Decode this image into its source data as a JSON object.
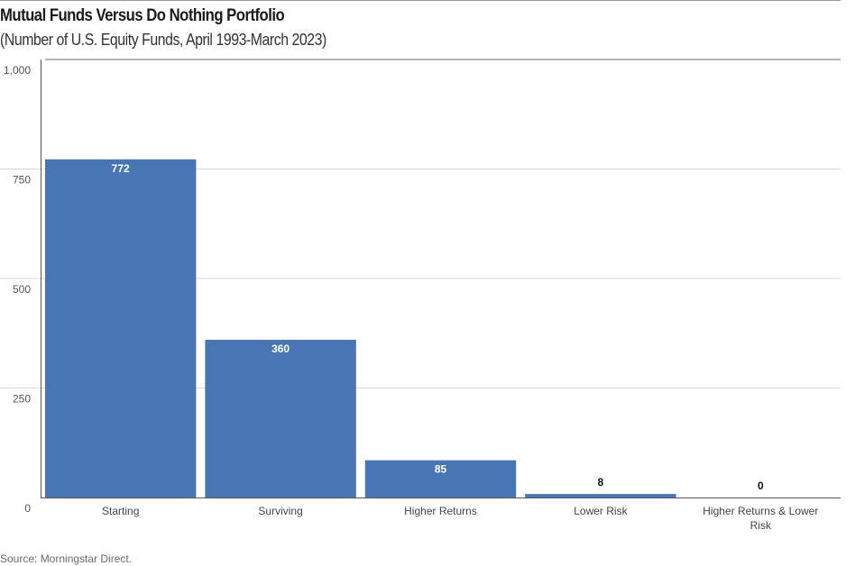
{
  "title": "Mutual Funds Versus Do Nothing Portfolio",
  "subtitle": "(Number of U.S. Equity Funds, April 1993-March 2023)",
  "source": "Source: Morningstar Direct.",
  "colors": {
    "bar": "#4a75b5",
    "grid": "#d9d9d9",
    "axis": "#555555",
    "label_inside": "#ffffff",
    "label_outside": "#111111"
  },
  "chart_data": {
    "type": "bar",
    "categories": [
      "Starting",
      "Surviving",
      "Higher Returns",
      "Lower Risk",
      "Higher Returns & Lower Risk"
    ],
    "category_lines": [
      [
        "Starting"
      ],
      [
        "Surviving"
      ],
      [
        "Higher Returns"
      ],
      [
        "Lower Risk"
      ],
      [
        "Higher Returns & Lower",
        "Risk"
      ]
    ],
    "values": [
      772,
      360,
      85,
      8,
      0
    ],
    "data_labels": [
      "772",
      "360",
      "85",
      "8",
      "0"
    ],
    "yticks": [
      0,
      250,
      500,
      750,
      1000
    ],
    "ytick_labels": [
      "0",
      "250",
      "500",
      "750",
      "1,000"
    ],
    "ylim": [
      0,
      1000
    ],
    "title": "Mutual Funds Versus Do Nothing Portfolio",
    "xlabel": "",
    "ylabel": "",
    "grid": true
  }
}
